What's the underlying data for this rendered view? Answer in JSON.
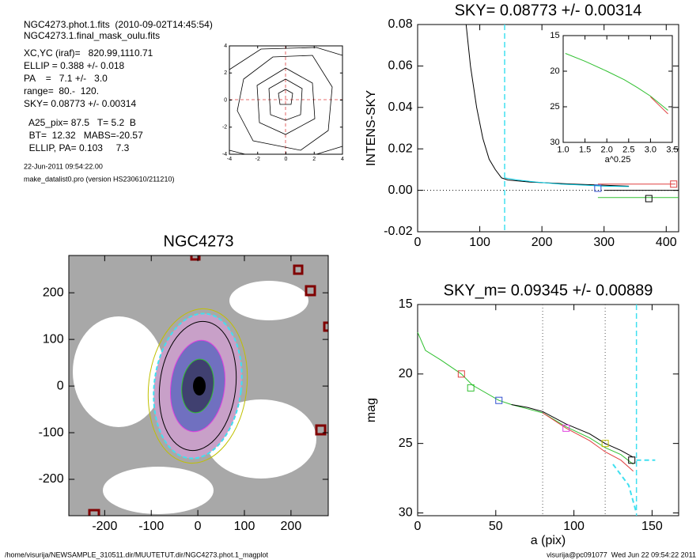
{
  "info": {
    "lines": [
      "NGC4273.phot.1.fits  (2010-09-02T14:45:54)",
      "NGC4273.1.final_mask_oulu.fits",
      "XC,YC (iraf)=   820.99,1110.71",
      "ELLIP = 0.388 +/- 0.018",
      "PA    =   7.1 +/-   3.0",
      "range=  80.-  120.",
      "SKY= 0.08773 +/- 0.00314",
      "  A25_pix= 87.5   T= 5.2  B",
      "  BT=  12.32   MABS=-20.57",
      "  ELLIP, PA= 0.103     7.3"
    ],
    "date": "22-Jun-2011 09:54:22.00",
    "program": "make_datalist0.pro (version HS230610/211210)"
  },
  "footer": {
    "path": "/home/visurija/NEWSAMPLE_310511.dir/MUUTETUT.dir/NGC4273.phot.1_magplot",
    "stamp": "visurija@pc091077  Wed Jun 22 09:54:22 2011"
  },
  "chart_data": [
    {
      "type": "contour",
      "xlim": [
        -4,
        4
      ],
      "ylim": [
        -4,
        4
      ],
      "xticks": [
        -4,
        -2,
        0,
        2,
        4
      ],
      "yticks": [
        -4,
        -2,
        0,
        2,
        4
      ]
    },
    {
      "type": "line",
      "title": "SKY= 0.08773 +/- 0.00314",
      "ylabel": "INTENS-SKY",
      "xlim": [
        0,
        420
      ],
      "ylim": [
        -0.02,
        0.08
      ],
      "xticks": [
        0,
        100,
        200,
        300,
        400
      ],
      "yticks": [
        {
          "value": -0.02,
          "label": "-0.02"
        },
        {
          "value": 0,
          "label": "0.00"
        },
        0.02,
        0.04,
        0.06,
        0.08
      ],
      "series": [
        {
          "color": "#000000",
          "x": [
            78,
            85,
            95,
            105,
            115,
            125,
            135,
            145,
            180,
            250,
            340
          ],
          "values": [
            0.08,
            0.06,
            0.04,
            0.025,
            0.015,
            0.01,
            0.006,
            0.005,
            0.004,
            0.003,
            0.002
          ]
        },
        {
          "color": "#00c8e0",
          "x": [
            140,
            160,
            190,
            230,
            270,
            300,
            340
          ],
          "values": [
            0.006,
            0.005,
            0.004,
            0.003,
            0.0025,
            0.002,
            0.0018
          ]
        },
        {
          "color": "#e04040",
          "x": [
            290,
            415
          ],
          "values": [
            0.003,
            0.003
          ]
        },
        {
          "color": "#30c030",
          "x": [
            290,
            420
          ],
          "values": [
            -0.0035,
            -0.0035
          ]
        },
        {
          "color": "#000000",
          "x": [
            300,
            420
          ],
          "values": [
            0,
            0
          ]
        }
      ],
      "markers": [
        {
          "x": 412,
          "y": 0.003,
          "color": "#e04040"
        },
        {
          "x": 372,
          "y": -0.004,
          "color": "#000000"
        },
        {
          "x": 290,
          "y": 0.001,
          "color": "#3050d0"
        }
      ],
      "vlines": [
        {
          "x": 140,
          "color": "#40e0f0"
        }
      ]
    },
    {
      "type": "line",
      "xlabel": "a^0.25",
      "xlim": [
        1,
        3.5
      ],
      "ylim": [
        30,
        15
      ],
      "xticks": [
        {
          "value": 1,
          "label": "1.0"
        },
        1.5,
        {
          "value": 2,
          "label": "2.0"
        },
        2.5,
        {
          "value": 3,
          "label": "3.0"
        },
        3.5
      ],
      "yticks": [
        15,
        20,
        25,
        30
      ],
      "series": [
        {
          "color": "#30c030",
          "x": [
            1.05,
            1.5,
            2.0,
            2.4,
            2.7,
            3.0,
            3.2,
            3.4
          ],
          "values": [
            17.5,
            18.6,
            20.0,
            21.2,
            22.3,
            23.5,
            24.5,
            25.5
          ]
        },
        {
          "color": "#e04040",
          "x": [
            3.0,
            3.2,
            3.4
          ],
          "values": [
            23.6,
            24.8,
            26.0
          ]
        }
      ]
    },
    {
      "type": "image",
      "title": "NGC4273",
      "xlim": [
        -277,
        280
      ],
      "ylim": [
        -278,
        280
      ],
      "xticks": [
        -200,
        -100,
        0,
        100,
        200
      ],
      "yticks": [
        -200,
        -100,
        0,
        100,
        200
      ]
    },
    {
      "type": "line",
      "title": "SKY_m=  0.09345 +/- 0.00889",
      "xlabel": "a (pix)",
      "ylabel": "mag",
      "xlim": [
        0,
        167
      ],
      "ylim": [
        30.2,
        15
      ],
      "xticks": [
        0,
        50,
        100,
        150
      ],
      "yticks": [
        15,
        20,
        25,
        30
      ],
      "series": [
        {
          "color": "#30c030",
          "x": [
            0,
            5,
            15,
            28,
            35,
            52,
            60,
            70,
            80,
            95,
            110,
            120,
            130,
            138
          ],
          "values": [
            17,
            18.3,
            19,
            20,
            20.8,
            21.9,
            22.2,
            22.5,
            22.8,
            23.8,
            24.6,
            25.3,
            25.8,
            26.5
          ]
        },
        {
          "color": "#000000",
          "x": [
            60,
            70,
            80,
            95,
            110,
            120,
            130,
            138
          ],
          "values": [
            22.2,
            22.4,
            22.7,
            23.6,
            24.3,
            25.0,
            25.5,
            26.0
          ]
        },
        {
          "color": "#e04040",
          "x": [
            80,
            95,
            110,
            120,
            130,
            138
          ],
          "values": [
            22.8,
            23.9,
            24.8,
            25.6,
            26.2,
            27.0
          ]
        },
        {
          "color": "#40e0f0",
          "dash": true,
          "x": [
            140,
            152
          ],
          "values": [
            26.2,
            26.2
          ]
        },
        {
          "color": "#40e0f0",
          "dash": true,
          "x": [
            125,
            135,
            140
          ],
          "values": [
            26.5,
            28,
            30
          ]
        }
      ],
      "markers": [
        {
          "x": 28,
          "y": 20,
          "color": "#e04040"
        },
        {
          "x": 34,
          "y": 21,
          "color": "#30c030"
        },
        {
          "x": 52,
          "y": 21.9,
          "color": "#3050d0"
        },
        {
          "x": 95,
          "y": 23.9,
          "color": "#e040e0"
        },
        {
          "x": 120,
          "y": 25,
          "color": "#c0c000"
        },
        {
          "x": 137,
          "y": 26.2,
          "color": "#000000"
        }
      ],
      "vlines": [
        {
          "x": 80,
          "color": "#555555",
          "dot": true
        },
        {
          "x": 120,
          "color": "#555555",
          "dot": true
        },
        {
          "x": 140,
          "color": "#40e0f0"
        }
      ]
    }
  ]
}
